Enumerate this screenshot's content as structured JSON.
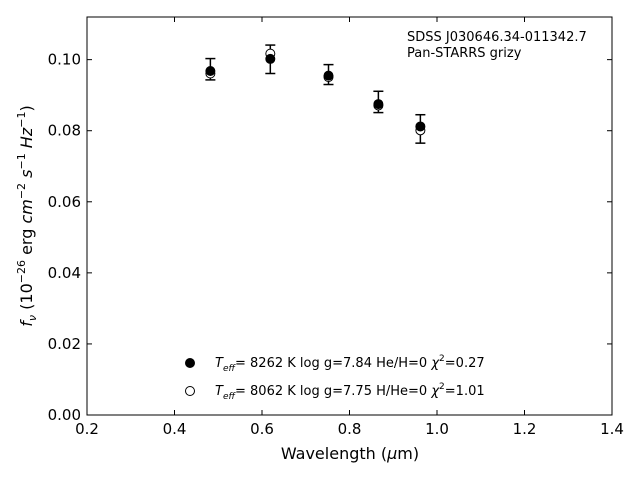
{
  "chart_data": {
    "type": "scatter",
    "annotation": [
      "SDSS J030646.34-011342.7",
      "Pan-STARRS grizy"
    ],
    "xlabel_prefix": "Wavelength (",
    "xlabel_mu": "μ",
    "xlabel_suffix": "m)",
    "ylabel_f": "f",
    "ylabel_nu": "ν",
    "ylabel_open": " (10",
    "ylabel_exp": "−26",
    "ylabel_erg": " erg ",
    "ylabel_cm": "cm",
    "ylabel_cm_exp": "−2",
    "ylabel_s": "s",
    "ylabel_s_exp": "−1",
    "ylabel_hz": "Hz",
    "ylabel_hz_exp": "−1",
    "ylabel_close": ")",
    "xlim": [
      0.2,
      1.4
    ],
    "ylim": [
      0.0,
      0.112
    ],
    "xticks": [
      "0.2",
      "0.4",
      "0.6",
      "0.8",
      "1.0",
      "1.2",
      "1.4"
    ],
    "yticks": [
      "0.00",
      "0.02",
      "0.04",
      "0.06",
      "0.08",
      "0.10"
    ],
    "observed": {
      "x": [
        0.482,
        0.619,
        0.752,
        0.866,
        0.962
      ],
      "y": [
        0.0973,
        0.1001,
        0.0958,
        0.0881,
        0.0805
      ],
      "yerr": [
        0.003,
        0.004,
        0.0028,
        0.003,
        0.004
      ]
    },
    "models": [
      {
        "marker": "filled",
        "teff_value": "8262 K",
        "logg": "log g=7.84",
        "comp": "He/H=0",
        "chi": "=0.27",
        "x": [
          0.482,
          0.619,
          0.752,
          0.866,
          0.962
        ],
        "y": [
          0.0968,
          0.1002,
          0.0955,
          0.0875,
          0.0812
        ]
      },
      {
        "marker": "open",
        "teff_value": "8062 K",
        "logg": "log g=7.75",
        "comp": "H/He=0",
        "chi": "=1.01",
        "x": [
          0.482,
          0.619,
          0.752,
          0.866,
          0.962
        ],
        "y": [
          0.0961,
          0.1017,
          0.0951,
          0.0871,
          0.0801
        ]
      }
    ],
    "legend_position": "lower-center"
  }
}
